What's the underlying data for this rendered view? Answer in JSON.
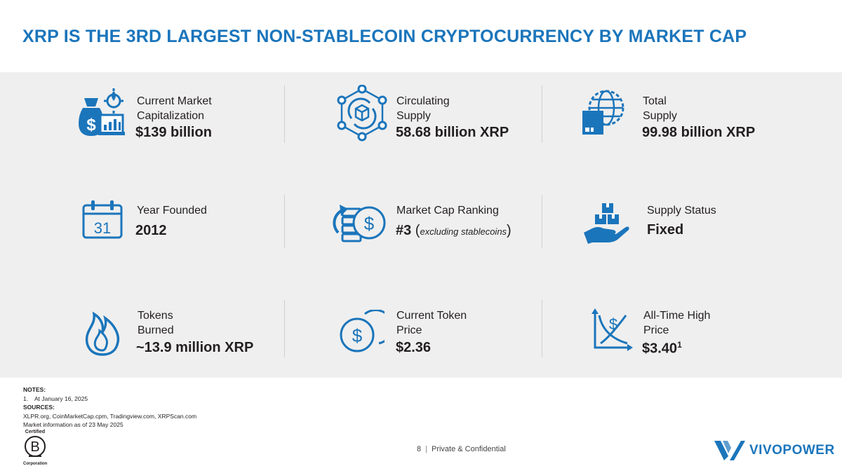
{
  "title": "XRP IS THE 3RD LARGEST NON-STABLECOIN CRYPTOCURRENCY BY MARKET CAP",
  "metrics": [
    {
      "label_lines": [
        "Current Market",
        "Capitalization"
      ],
      "value": "$139 billion",
      "icon": "money-bag-chart-icon"
    },
    {
      "label_lines": [
        "Circulating",
        "Supply"
      ],
      "value": "58.68 billion XRP",
      "icon": "network-box-icon"
    },
    {
      "label_lines": [
        "Total",
        "Supply"
      ],
      "value": "99.98 billion XRP",
      "icon": "globe-box-icon"
    },
    {
      "label_lines": [
        "Year Founded"
      ],
      "value": "2012",
      "icon": "calendar-icon",
      "icon_text": "31"
    },
    {
      "label_lines": [
        "Market Cap Ranking"
      ],
      "value": "#3",
      "value_paren_open": " (",
      "value_note": "excluding stablecoins",
      "value_paren_close": ")",
      "icon": "coins-ranking-icon"
    },
    {
      "label_lines": [
        "Supply Status"
      ],
      "value": "Fixed",
      "icon": "hand-boxes-icon"
    },
    {
      "label_lines": [
        "Tokens",
        "Burned"
      ],
      "value": "~13.9 million XRP",
      "icon": "flame-icon"
    },
    {
      "label_lines": [
        "Current Token",
        "Price"
      ],
      "value": "$2.36",
      "icon": "coin-dollar-icon"
    },
    {
      "label_lines": [
        "All-Time High",
        "Price"
      ],
      "value": "$3.40",
      "value_sup": "1",
      "icon": "chart-dollar-icon"
    }
  ],
  "notes": {
    "notes_heading": "NOTES:",
    "note_items": [
      {
        "num": "1.",
        "text": "At January 16, 2025"
      }
    ],
    "sources_heading": "SOURCES:",
    "sources_text": "XLPR.org, CoinMarketCap.cpm, Tradingview.com, XRPScan.com",
    "market_info": "Market information as of 23 May 2025"
  },
  "bcorp": {
    "certified": "Certified",
    "letter": "B",
    "corporation": "Corporation"
  },
  "footer": {
    "page": "8",
    "separator": "|",
    "confidential": "Private & Confidential"
  },
  "logo": {
    "name": "VIVOPOWER"
  },
  "colors": {
    "brand_blue": "#1b75bb",
    "panel_bg": "#efefef",
    "text": "#231f20"
  }
}
